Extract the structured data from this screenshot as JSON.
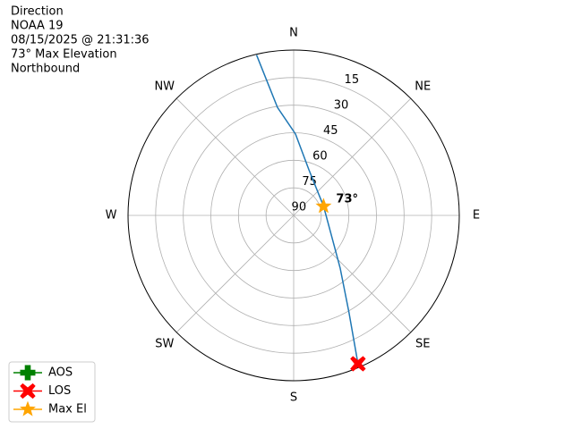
{
  "chart_data": {
    "type": "polar",
    "title_lines": [
      "Direction",
      "NOAA 19",
      "08/15/2025 @ 21:31:36",
      "73° Max Elevation",
      "Northbound"
    ],
    "directions": [
      "N",
      "NE",
      "E",
      "SE",
      "S",
      "SW",
      "W",
      "NW"
    ],
    "rlim": [
      90,
      0
    ],
    "rticks": [
      15,
      30,
      45,
      60,
      75,
      90
    ],
    "grid": true,
    "track": {
      "color": "#1f77b4",
      "az": [
        347,
        351.5,
        1.3,
        18.4,
        73,
        123.4,
        138.6,
        150.4,
        156.6
      ],
      "el": [
        0.4,
        30.6,
        45.7,
        63.8,
        73,
        64.4,
        51.8,
        29.1,
        2
      ]
    },
    "markers": [
      {
        "name": "AOS",
        "color": "#008000",
        "symbol": "plus"
      },
      {
        "name": "LOS",
        "color": "#ff0000",
        "symbol": "x",
        "az": 156.6,
        "el": 2
      },
      {
        "name": "Max El",
        "color": "#ffa500",
        "symbol": "star",
        "az": 73,
        "el": 73
      }
    ],
    "annotation": "73°",
    "legend": "lower left"
  }
}
